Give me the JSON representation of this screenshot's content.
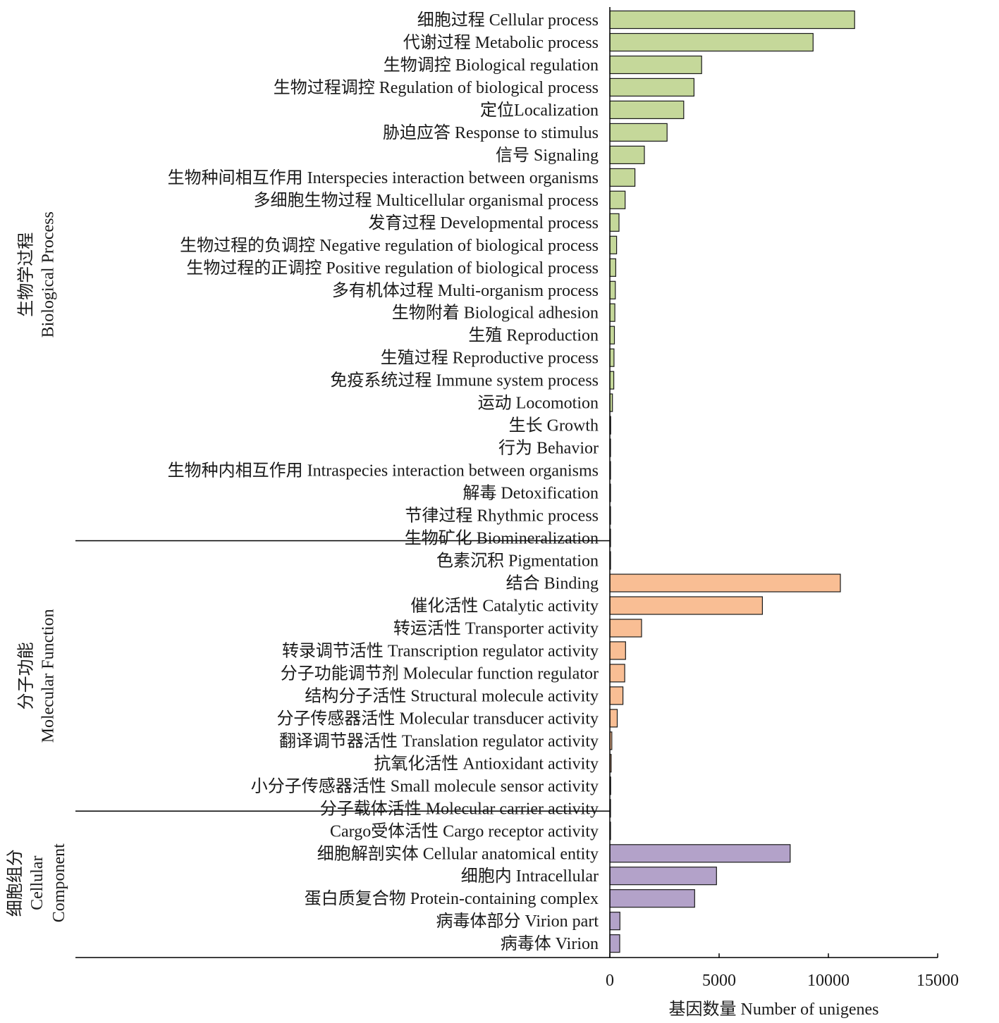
{
  "chart_data": {
    "type": "bar",
    "orientation": "horizontal",
    "xlabel": "基因数量 Number of unigenes",
    "xlim": [
      0,
      15000
    ],
    "xticks": [
      "0",
      "5000",
      "10000",
      "15000"
    ],
    "groups": [
      {
        "name_lines": [
          "生物学过程",
          "Biological Process"
        ],
        "color": "#c5d89a",
        "categories": [
          "细胞过程 Cellular process",
          "代谢过程 Metabolic process",
          "生物调控 Biological regulation",
          "生物过程调控 Regulation of biological process",
          "定位Localization",
          "胁迫应答 Response to stimulus",
          "信号 Signaling",
          "生物种间相互作用 Interspecies interaction between organisms",
          "多细胞生物过程 Multicellular organismal process",
          "发育过程 Developmental process",
          "生物过程的负调控 Negative regulation of biological process",
          "生物过程的正调控 Positive regulation of biological process",
          "多有机体过程 Multi-organism process",
          "生物附着 Biological adhesion",
          "生殖 Reproduction",
          "生殖过程 Reproductive process",
          "免疫系统过程 Immune system process",
          "运动 Locomotion",
          "生长 Growth",
          "行为 Behavior",
          "生物种内相互作用 Intraspecies interaction between organisms",
          "解毒 Detoxification",
          "节律过程 Rhythmic process",
          "生物矿化 Biomineralization"
        ],
        "values": [
          11200,
          9300,
          4200,
          3850,
          3380,
          2620,
          1580,
          1150,
          700,
          420,
          310,
          270,
          250,
          230,
          210,
          190,
          180,
          120,
          40,
          30,
          25,
          20,
          15,
          10
        ]
      },
      {
        "name_lines": [
          "分子功能",
          "Molecular Function"
        ],
        "color": "#f9be94",
        "categories": [
          "色素沉积 Pigmentation",
          "结合 Binding",
          "催化活性 Catalytic activity",
          "转运活性 Transporter activity",
          "转录调节活性 Transcription regulator activity",
          "分子功能调节剂 Molecular function regulator",
          "结构分子活性 Structural molecule activity",
          "分子传感器活性 Molecular transducer activity",
          "翻译调节器活性 Translation regulator activity",
          "抗氧化活性 Antioxidant activity",
          "小分子传感器活性 Small molecule sensor activity",
          "分子载体活性 Molecular carrier activity"
        ],
        "values": [
          10,
          10550,
          6980,
          1450,
          720,
          680,
          600,
          340,
          90,
          60,
          40,
          25
        ]
      },
      {
        "name_lines": [
          "细胞组分",
          "Cellular",
          "Component"
        ],
        "color": "#b3a2c9",
        "categories": [
          "Cargo受体活性 Cargo receptor activity",
          "细胞解剖实体 Cellular anatomical entity",
          "细胞内 Intracellular",
          "蛋白质复合物 Protein-containing complex",
          "病毒体部分 Virion part",
          "病毒体 Virion"
        ],
        "values": [
          15,
          8250,
          4880,
          3880,
          460,
          450
        ]
      }
    ]
  }
}
